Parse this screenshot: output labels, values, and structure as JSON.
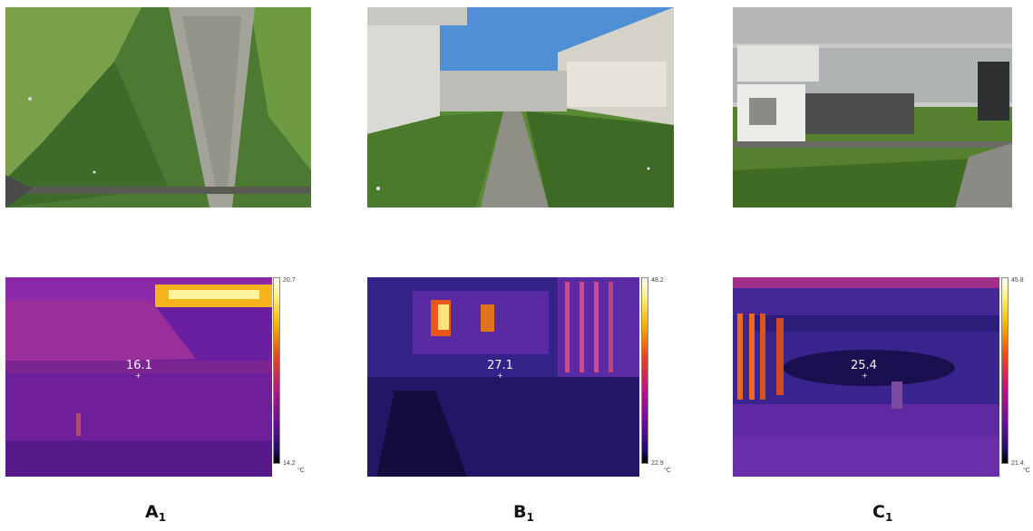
{
  "panels": [
    {
      "caption_letter": "A",
      "caption_sub": "1",
      "readout": "16.1",
      "scale_max": "20.7",
      "scale_min": "14.2",
      "unit": "°C"
    },
    {
      "caption_letter": "B",
      "caption_sub": "1",
      "readout": "27.1",
      "scale_max": "48.2",
      "scale_min": "22.9",
      "unit": "°C"
    },
    {
      "caption_letter": "C",
      "caption_sub": "1",
      "readout": "25.4",
      "scale_max": "45.8",
      "scale_min": "21.4",
      "unit": "°C"
    }
  ]
}
